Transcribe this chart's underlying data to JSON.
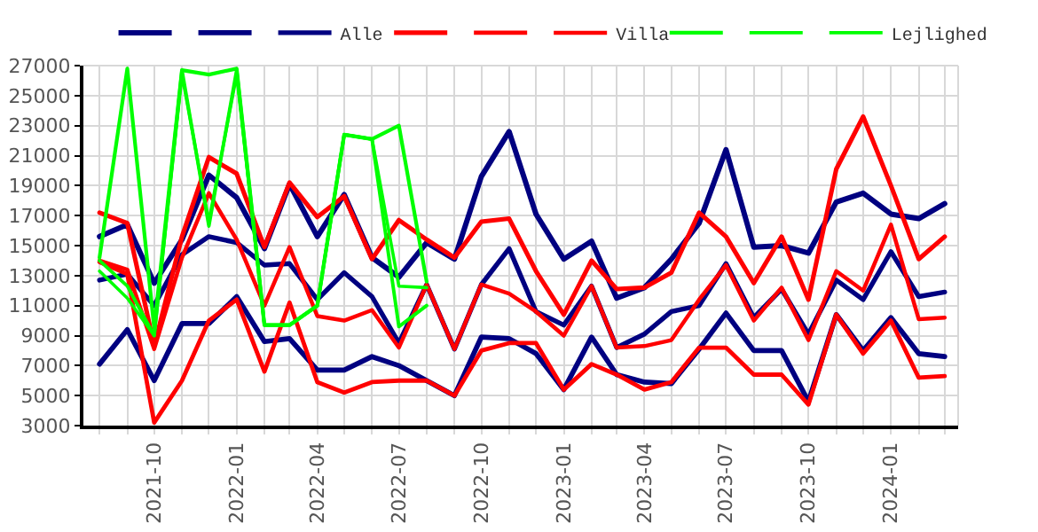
{
  "chart_data": {
    "type": "line",
    "x": [
      "2021-08",
      "2021-09",
      "2021-10",
      "2021-11",
      "2021-12",
      "2022-01",
      "2022-02",
      "2022-03",
      "2022-04",
      "2022-05",
      "2022-06",
      "2022-07",
      "2022-08",
      "2022-09",
      "2022-10",
      "2022-11",
      "2022-12",
      "2023-01",
      "2023-02",
      "2023-03",
      "2023-04",
      "2023-05",
      "2023-06",
      "2023-07",
      "2023-08",
      "2023-09",
      "2023-10",
      "2023-11",
      "2023-12",
      "2024-01",
      "2024-02",
      "2024-03"
    ],
    "series": [
      {
        "color": "#000080",
        "values": [
          15600,
          16400,
          12500,
          15400,
          19700,
          18200,
          14800,
          19100,
          15600,
          18400,
          14200,
          12900,
          15200,
          14100,
          19600,
          22600,
          17100,
          14100,
          15300,
          11500,
          12200,
          14100,
          16500,
          21400,
          14900,
          15000,
          14500,
          17900,
          18500,
          17100,
          16800,
          17800
        ]
      },
      {
        "color": "#000080",
        "values": [
          7100,
          9400,
          6000,
          9800,
          9800,
          11600,
          8600,
          8800,
          6700,
          6700,
          7600,
          7000,
          6000,
          5000,
          8900,
          8800,
          7800,
          5400,
          8900,
          6400,
          5900,
          5800,
          8100,
          10500,
          8000,
          8000,
          4600,
          10400,
          8000,
          10200,
          7800,
          7600
        ]
      },
      {
        "name": "Alle",
        "color": "#000080",
        "values": [
          12700,
          13100,
          11000,
          14400,
          15600,
          15200,
          13700,
          13800,
          11400,
          13200,
          11600,
          8500,
          12400,
          8100,
          12400,
          14800,
          10600,
          9700,
          12300,
          8200,
          9100,
          10600,
          11000,
          13800,
          10200,
          12100,
          9100,
          12700,
          11400,
          14600,
          11600,
          11900
        ]
      },
      {
        "color": "#ff0000",
        "values": [
          17200,
          16500,
          8300,
          15600,
          20900,
          19800,
          14900,
          19200,
          16900,
          18300,
          14100,
          16700,
          15400,
          14200,
          16600,
          16800,
          13300,
          10400,
          14000,
          12100,
          12200,
          13200,
          17200,
          15600,
          12500,
          15600,
          11400,
          20100,
          23600,
          19000,
          14100,
          15600
        ]
      },
      {
        "color": "#ff0000",
        "values": [
          13900,
          13100,
          3200,
          6000,
          10000,
          11400,
          6600,
          11200,
          5900,
          5200,
          5900,
          6000,
          6000,
          5000,
          8000,
          8500,
          8500,
          5400,
          7100,
          6400,
          5400,
          5900,
          8200,
          8200,
          6400,
          6400,
          4400,
          10400,
          7800,
          10000,
          6200,
          6300
        ]
      },
      {
        "name": "Villa",
        "color": "#ff0000",
        "values": [
          14000,
          13400,
          8100,
          14200,
          18500,
          15400,
          11000,
          14900,
          10300,
          10000,
          10700,
          8200,
          12400,
          8100,
          12400,
          11800,
          10600,
          9000,
          12300,
          8200,
          8300,
          8700,
          11400,
          13700,
          10000,
          12200,
          8700,
          13300,
          12000,
          16400,
          10100,
          10200
        ]
      },
      {
        "color": "#00ff00",
        "x": [
          "2021-08",
          "2021-09",
          "2021-10",
          "2021-11",
          "2021-12",
          "2022-01",
          "2022-02",
          "2022-03",
          "2022-04",
          "2022-05",
          "2022-06",
          "2022-07",
          "2022-08"
        ],
        "values": [
          14200,
          26800,
          9500,
          26700,
          26400,
          26800,
          9700,
          9700,
          11000,
          22400,
          22100,
          23000,
          12600
        ]
      },
      {
        "color": "#00ff00",
        "x": [
          "2021-08",
          "2021-09",
          "2021-10",
          "2021-11",
          "2021-12",
          "2022-01",
          "2022-02",
          "2022-03",
          "2022-04",
          "2022-05",
          "2022-06",
          "2022-07",
          "2022-08"
        ],
        "values": [
          14000,
          12300,
          9000,
          26700,
          16300,
          26700,
          9700,
          9700,
          11000,
          22400,
          22100,
          9600,
          11000
        ]
      },
      {
        "name": "Lejlighed",
        "color": "#00ff00",
        "x": [
          "2021-08",
          "2021-09",
          "2021-10",
          "2021-11",
          "2021-12",
          "2022-01",
          "2022-02",
          "2022-03",
          "2022-04",
          "2022-05",
          "2022-06",
          "2022-07",
          "2022-08"
        ],
        "values": [
          13300,
          11500,
          9000,
          26400,
          16600,
          26400,
          9700,
          9700,
          11000,
          22400,
          22100,
          12300,
          12200
        ]
      }
    ],
    "xlim": [
      "2021-07-14",
      "2024-03-16"
    ],
    "xticks": [
      {
        "value": "2021-08",
        "label": null
      },
      {
        "value": "2021-09",
        "label": null
      },
      "2021-10",
      {
        "value": "2021-11",
        "label": null
      },
      {
        "value": "2021-12",
        "label": null
      },
      "2022-01",
      {
        "value": "2022-02",
        "label": null
      },
      {
        "value": "2022-03",
        "label": null
      },
      "2022-04",
      {
        "value": "2022-05",
        "label": null
      },
      {
        "value": "2022-06",
        "label": null
      },
      "2022-07",
      {
        "value": "2022-08",
        "label": null
      },
      {
        "value": "2022-09",
        "label": null
      },
      "2022-10",
      {
        "value": "2022-11",
        "label": null
      },
      {
        "value": "2022-12",
        "label": null
      },
      "2023-01",
      {
        "value": "2023-02",
        "label": null
      },
      {
        "value": "2023-03",
        "label": null
      },
      "2023-04",
      {
        "value": "2023-05",
        "label": null
      },
      {
        "value": "2023-06",
        "label": null
      },
      "2023-07",
      {
        "value": "2023-08",
        "label": null
      },
      {
        "value": "2023-09",
        "label": null
      },
      "2023-10",
      {
        "value": "2023-11",
        "label": null
      },
      {
        "value": "2023-12",
        "label": null
      },
      "2024-01",
      {
        "value": "2024-02",
        "label": null
      },
      {
        "value": "2024-03",
        "label": null
      }
    ],
    "ylim": [
      3000,
      27000
    ],
    "yticks": [
      3000,
      5000,
      7000,
      9000,
      11000,
      13000,
      15000,
      17000,
      19000,
      21000,
      23000,
      25000,
      27000
    ],
    "grid": true,
    "legend": "top right",
    "marker": "none",
    "line_style": "solid"
  }
}
